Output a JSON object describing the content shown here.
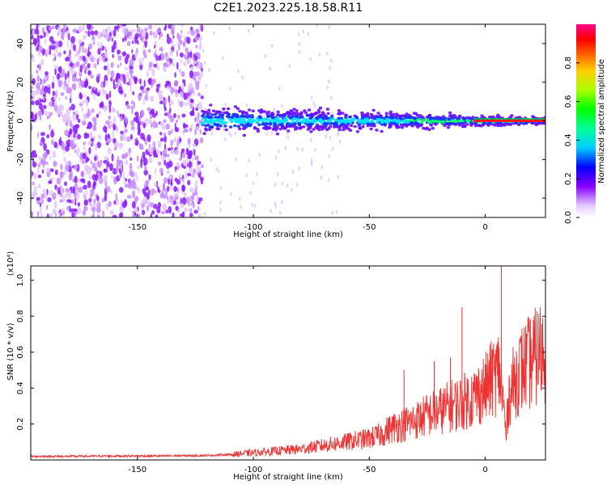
{
  "title": "C2E1.2023.225.18.58.R11",
  "chart_data": [
    {
      "type": "heatmap",
      "xlabel": "Height of straight line (km)",
      "ylabel": "Frequency (Hz)",
      "xlim": [
        -196,
        26
      ],
      "ylim": [
        -50,
        50
      ],
      "xticks": [
        -150,
        -100,
        -50,
        0
      ],
      "yticks": [
        -40,
        -20,
        0,
        20,
        40
      ],
      "colorbar": {
        "label": "Normalized spectral amplitude",
        "range": [
          0,
          1
        ],
        "ticks": [
          0.0,
          0.2,
          0.4,
          0.6,
          0.8
        ],
        "tick_labels": [
          "0.0",
          "0.2",
          "0.4",
          "0.6",
          "0.8"
        ]
      },
      "features": {
        "noise_region_x": [
          -196,
          -122
        ],
        "signal_band": {
          "x_start": -122,
          "x_end": 26,
          "center_hz": 0
        },
        "peak_near_x": 0
      }
    },
    {
      "type": "line",
      "xlabel": "Height of straight line (km)",
      "ylabel": "SNR (10 * v/v)",
      "scale_label": "(x10⁴)",
      "xlim": [
        -196,
        26
      ],
      "ylim": [
        0,
        1.08
      ],
      "xticks": [
        -150,
        -100,
        -50,
        0
      ],
      "yticks": [
        0.2,
        0.4,
        0.6,
        0.8,
        1.0
      ],
      "series": [
        {
          "color": "#ee3333",
          "x": [
            -196,
            -180,
            -160,
            -140,
            -120,
            -110,
            -100,
            -90,
            -80,
            -70,
            -60,
            -50,
            -45,
            -40,
            -35,
            -30,
            -25,
            -20,
            -15,
            -10,
            -5,
            0,
            3,
            5,
            6,
            8,
            9,
            10,
            12,
            15,
            20,
            26
          ],
          "y": [
            0.02,
            0.02,
            0.022,
            0.022,
            0.025,
            0.03,
            0.04,
            0.05,
            0.06,
            0.08,
            0.1,
            0.12,
            0.14,
            0.18,
            0.2,
            0.22,
            0.25,
            0.27,
            0.3,
            0.32,
            0.35,
            0.4,
            0.45,
            0.48,
            0.5,
            0.3,
            0.12,
            0.35,
            0.42,
            0.5,
            0.55,
            0.62
          ]
        }
      ],
      "spikes": [
        {
          "x": -35,
          "y": 0.5
        },
        {
          "x": -22,
          "y": 0.55
        },
        {
          "x": -15,
          "y": 0.57
        },
        {
          "x": -10,
          "y": 0.85
        },
        {
          "x": 3,
          "y": 0.62
        },
        {
          "x": 7,
          "y": 1.08
        }
      ]
    }
  ]
}
